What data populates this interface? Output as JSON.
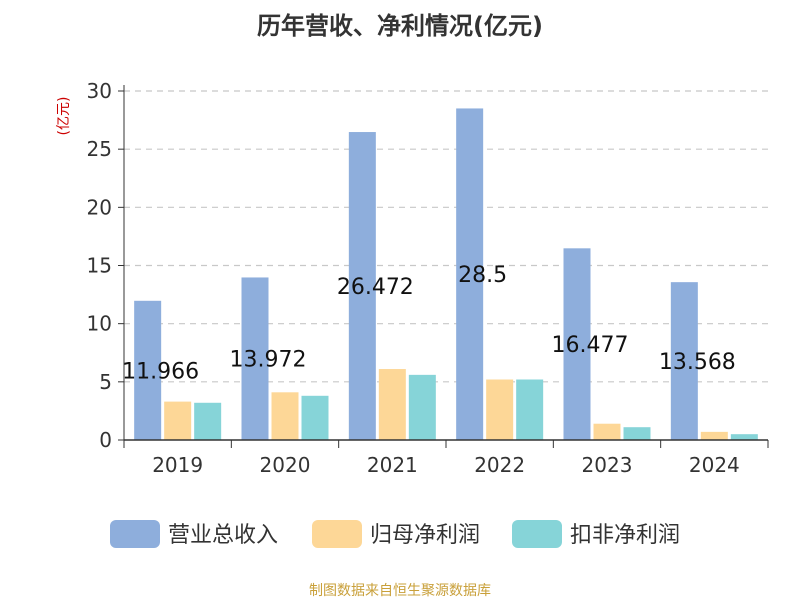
{
  "chart_data": {
    "type": "bar",
    "title": "历年营收、净利情况(亿元)",
    "ylabel": "(亿元)",
    "categories": [
      "2019",
      "2020",
      "2021",
      "2022",
      "2023",
      "2024"
    ],
    "series": [
      {
        "name": "营业总收入",
        "values": [
          11.966,
          13.972,
          26.472,
          28.5,
          16.477,
          13.568
        ],
        "color": "#8eaedc"
      },
      {
        "name": "归母净利润",
        "values": [
          3.3,
          4.1,
          6.1,
          5.2,
          1.4,
          0.7
        ],
        "color": "#fdd797"
      },
      {
        "name": "扣非净利润",
        "values": [
          3.2,
          3.8,
          5.6,
          5.2,
          1.1,
          0.5
        ],
        "color": "#86d4d8"
      }
    ],
    "data_labels": [
      "11.966",
      "13.972",
      "26.472",
      "28.5",
      "16.477",
      "13.568"
    ],
    "yticks": [
      0,
      5,
      10,
      15,
      20,
      25,
      30
    ],
    "ylim": [
      0,
      30
    ],
    "grid": true,
    "legend": "bottom"
  },
  "source": "制图数据来自恒生聚源数据库"
}
